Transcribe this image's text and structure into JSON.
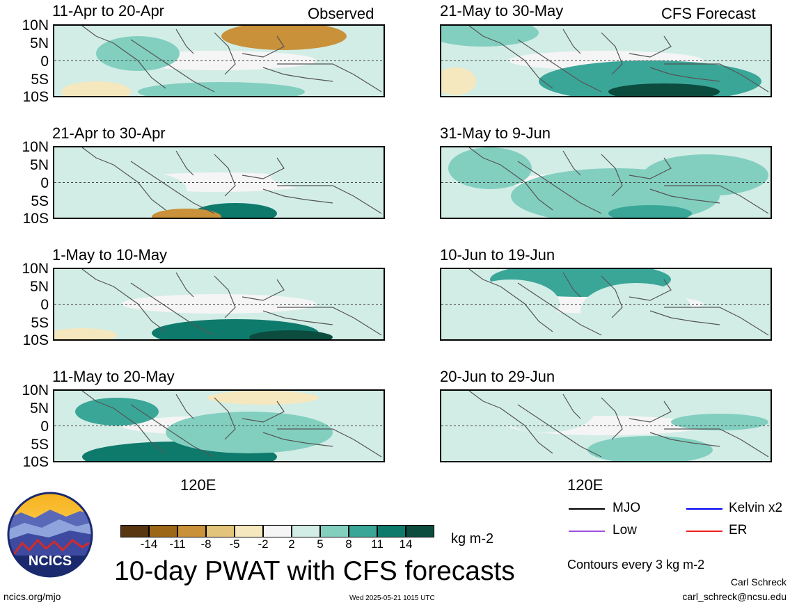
{
  "header": {
    "observed_label": "Observed",
    "forecast_label": "CFS Forecast"
  },
  "lat_labels": [
    "10N",
    "5N",
    "0",
    "5S",
    "10S"
  ],
  "panels_left": [
    {
      "title": "11-Apr to 20-Apr"
    },
    {
      "title": "21-Apr to 30-Apr"
    },
    {
      "title": "1-May to 10-May"
    },
    {
      "title": "11-May to 20-May"
    }
  ],
  "panels_right": [
    {
      "title": "21-May to 30-May"
    },
    {
      "title": "31-May to 9-Jun"
    },
    {
      "title": "10-Jun to 19-Jun"
    },
    {
      "title": "20-Jun to 29-Jun"
    }
  ],
  "lon_label": "120E",
  "colorbar": {
    "colors": [
      "#573610",
      "#9d6718",
      "#c8913a",
      "#e2c47a",
      "#f5e8be",
      "#f5f5f5",
      "#d2ede6",
      "#82cfc0",
      "#3aa698",
      "#0e7a6c",
      "#0b4c3f"
    ],
    "labels": [
      "-14",
      "-11",
      "-8",
      "-5",
      "-2",
      "2",
      "5",
      "8",
      "11",
      "14"
    ],
    "units": "kg m-2"
  },
  "title": "10-day PWAT with CFS forecasts",
  "legend": [
    {
      "label": "MJO",
      "color": "#000000"
    },
    {
      "label": "Kelvin x2",
      "color": "#0000ee"
    },
    {
      "label": "Low",
      "color": "#a050e0"
    },
    {
      "label": "ER",
      "color": "#ee2020"
    }
  ],
  "contour_note": "Contours every 3 kg m-2",
  "author": "Carl Schreck",
  "email": "carl_schreck@ncsu.edu",
  "website": "ncics.org/mjo",
  "timestamp": "Wed 2025-05-21 1015 UTC",
  "logo_text": "NCICS"
}
